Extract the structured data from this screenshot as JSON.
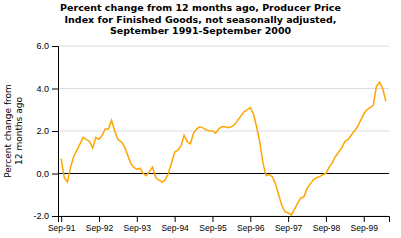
{
  "chart_data": {
    "type": "line",
    "title": "Percent change from 12 months ago, Producer Price\nIndex for Finished Goods, not seasonally adjusted,\nSeptember 1991-September 2000",
    "y_label": "Percent change from\n12 months ago",
    "color": "#FFA500",
    "grid": true,
    "ylim": [
      -2.0,
      6.0
    ],
    "yticks": [
      {
        "value": -2.0,
        "label": "-2.0"
      },
      {
        "value": 0.0,
        "label": "0.0"
      },
      {
        "value": 2.0,
        "label": "2.0"
      },
      {
        "value": 4.0,
        "label": "4.0"
      },
      {
        "value": 6.0,
        "label": "6.0"
      }
    ],
    "categories": [
      "Sep-91",
      null,
      null,
      null,
      null,
      null,
      null,
      null,
      null,
      null,
      null,
      null,
      "Sep-92",
      null,
      null,
      null,
      null,
      null,
      null,
      null,
      null,
      null,
      null,
      null,
      "Sep-93",
      null,
      null,
      null,
      null,
      null,
      null,
      null,
      null,
      null,
      null,
      null,
      "Sep-94",
      null,
      null,
      null,
      null,
      null,
      null,
      null,
      null,
      null,
      null,
      null,
      "Sep-95",
      null,
      null,
      null,
      null,
      null,
      null,
      null,
      null,
      null,
      null,
      null,
      "Sep-96",
      null,
      null,
      null,
      null,
      null,
      null,
      null,
      null,
      null,
      null,
      null,
      "Sep-97",
      null,
      null,
      null,
      null,
      null,
      null,
      null,
      null,
      null,
      null,
      null,
      "Sep-98",
      null,
      null,
      null,
      null,
      null,
      null,
      null,
      null,
      null,
      null,
      null,
      "Sep-99",
      null,
      null,
      null,
      null,
      null,
      null,
      null
    ],
    "values": [
      0.7,
      -0.2,
      -0.4,
      0.3,
      0.8,
      1.1,
      1.4,
      1.7,
      1.6,
      1.5,
      1.2,
      1.7,
      1.6,
      1.8,
      2.1,
      2.1,
      2.5,
      2.0,
      1.6,
      1.5,
      1.3,
      0.9,
      0.5,
      0.3,
      0.2,
      0.25,
      0.0,
      -0.1,
      0.1,
      0.3,
      -0.2,
      -0.3,
      -0.4,
      -0.3,
      0.0,
      0.5,
      1.0,
      1.1,
      1.3,
      1.8,
      1.5,
      1.4,
      1.9,
      2.1,
      2.2,
      2.15,
      2.05,
      2.0,
      2.0,
      1.9,
      2.1,
      2.2,
      2.2,
      2.15,
      2.2,
      2.3,
      2.5,
      2.7,
      2.9,
      3.0,
      3.1,
      2.8,
      2.2,
      1.5,
      0.5,
      -0.1,
      -0.05,
      -0.15,
      -0.5,
      -1.0,
      -1.5,
      -1.8,
      -1.85,
      -1.95,
      -1.7,
      -1.4,
      -1.15,
      -1.1,
      -0.7,
      -0.5,
      -0.3,
      -0.2,
      -0.15,
      -0.05,
      0.0,
      0.3,
      0.5,
      0.8,
      1.0,
      1.2,
      1.5,
      1.6,
      1.8,
      2.0,
      2.2,
      2.5,
      2.8,
      3.0,
      3.1,
      3.2,
      4.1,
      4.3,
      4.0,
      3.4
    ]
  }
}
